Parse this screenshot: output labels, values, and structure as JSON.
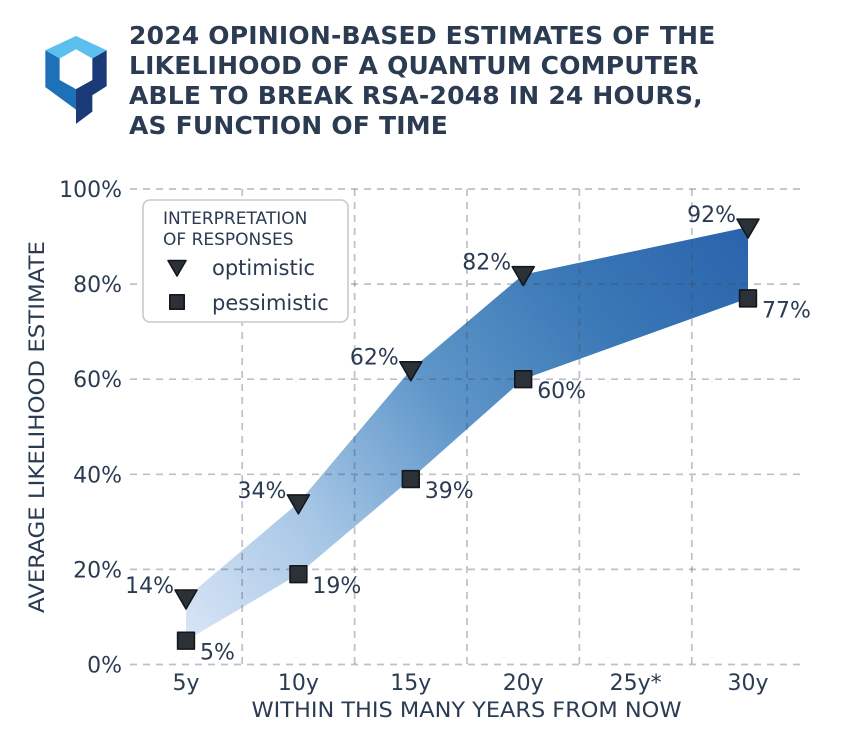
{
  "header": {
    "logo_name": "hexagon-q-logo",
    "logo_colors": {
      "top": "#5cc0ee",
      "left": "#1e70b9",
      "right": "#1a3a78"
    },
    "title_lines": [
      "2024 OPINION-BASED ESTIMATES OF THE",
      "LIKELIHOOD OF A QUANTUM COMPUTER",
      "ABLE TO BREAK RSA-2048 IN 24 HOURS,",
      "AS FUNCTION OF TIME"
    ]
  },
  "chart_data": {
    "type": "area",
    "title": "2024 opinion-based estimates of the likelihood of a quantum computer able to break RSA-2048 in 24 hours, as function of time",
    "categories": [
      "5y",
      "10y",
      "15y",
      "20y",
      "25y*",
      "30y"
    ],
    "series": [
      {
        "name": "optimistic",
        "marker": "triangle-down",
        "values": [
          14,
          34,
          62,
          82,
          null,
          92
        ]
      },
      {
        "name": "pessimistic",
        "marker": "square",
        "values": [
          5,
          19,
          39,
          60,
          null,
          77
        ]
      }
    ],
    "band": "filled gradient region between optimistic and pessimistic lines",
    "xlabel": "WITHIN THIS MANY YEARS FROM NOW",
    "ylabel": "AVERAGE LIKELIHOOD ESTIMATE",
    "y_tick_labels": [
      "0%",
      "20%",
      "40%",
      "60%",
      "80%",
      "100%"
    ],
    "y_tick_values": [
      0,
      20,
      40,
      60,
      80,
      100
    ],
    "ylim": [
      0,
      100
    ],
    "grid": {
      "style": "dashed",
      "horizontal": "at y ticks",
      "vertical": "midpoints between x categories"
    },
    "legend": {
      "position": "upper left",
      "title_lines": [
        "INTERPRETATION",
        "OF RESPONSES"
      ],
      "entries": [
        {
          "marker": "triangle-down",
          "label": "optimistic"
        },
        {
          "marker": "square",
          "label": "pessimistic"
        }
      ]
    }
  },
  "colors": {
    "background": "#ffffff",
    "text": "#2b3b52",
    "grid": "rgba(62,74,96,0.35)",
    "marker_fill": "#2c3037",
    "marker_edge": "#14171c",
    "legend_border": "#c7cad0",
    "legend_fill": "#ffffff",
    "band_gradient": [
      "#d9e5f6",
      "#a6c6e5",
      "#5e96c9",
      "#3a78b6",
      "#2a63ac"
    ]
  }
}
